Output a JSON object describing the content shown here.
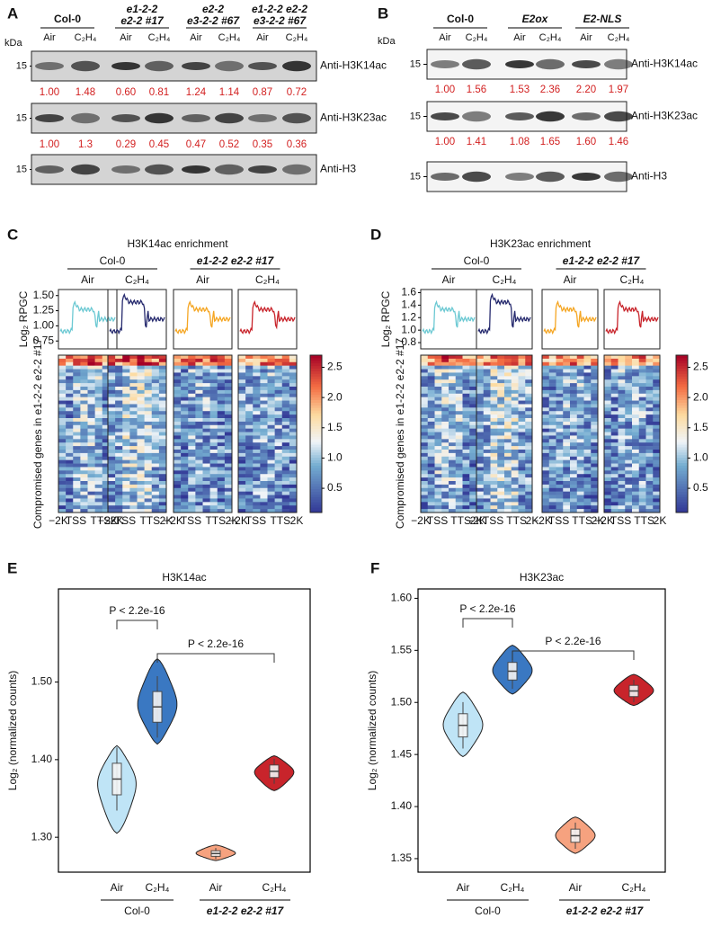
{
  "panel_a": {
    "label": "A",
    "kda": "kDa",
    "groups": [
      [
        "Col-0"
      ],
      [
        "e1-2-2",
        "e2-2 #17"
      ],
      [
        "e2-2",
        "e3-2-2 #67"
      ],
      [
        "e1-2-2 e2-2",
        "e3-2-2 #67"
      ]
    ],
    "lanes": [
      "Air",
      "C₂H₄",
      "Air",
      "C₂H₄",
      "Air",
      "C₂H₄",
      "Air",
      "C₂H₄"
    ],
    "blots": [
      {
        "marker": "15",
        "antibody": "Anti-H3K14ac",
        "values": [
          "1.00",
          "1.48",
          "0.60",
          "0.81",
          "1.24",
          "1.14",
          "0.87",
          "0.72"
        ]
      },
      {
        "marker": "15",
        "antibody": "Anti-H3K23ac",
        "values": [
          "1.00",
          "1.3",
          "0.29",
          "0.45",
          "0.47",
          "0.52",
          "0.35",
          "0.36"
        ]
      },
      {
        "marker": "15",
        "antibody": "Anti-H3"
      }
    ]
  },
  "panel_b": {
    "label": "B",
    "kda": "kDa",
    "groups": [
      "Col-0",
      "E2ox",
      "E2-NLS"
    ],
    "lanes": [
      "Air",
      "C₂H₄",
      "Air",
      "C₂H₄",
      "Air",
      "C₂H₄"
    ],
    "blots": [
      {
        "marker": "15",
        "antibody": "Anti-H3K14ac",
        "values": [
          "1.00",
          "1.56",
          "1.53",
          "2.36",
          "2.20",
          "1.97"
        ]
      },
      {
        "marker": "15",
        "antibody": "Anti-H3K23ac",
        "values": [
          "1.00",
          "1.41",
          "1.08",
          "1.65",
          "1.60",
          "1.46"
        ]
      },
      {
        "marker": "15",
        "antibody": "Anti-H3"
      }
    ]
  },
  "panel_c": {
    "label": "C",
    "title": "H3K14ac enrichment",
    "groups": [
      "Col-0",
      "e1-2-2 e2-2 #17"
    ],
    "conditions": [
      "Air",
      "C₂H₄",
      "Air",
      "C₂H₄"
    ],
    "profile_ylabel": "Log₂ RPGC",
    "profile_ylim": [
      0.62,
      1.6
    ],
    "profile_yticks": [
      {
        "value": 0.75,
        "label": "0.75"
      },
      {
        "value": 1,
        "label": "1.00"
      },
      {
        "value": 1.25,
        "label": "1.25"
      },
      {
        "value": 1.5,
        "label": "1.50"
      }
    ],
    "heatmap_ylabel": "Compromised genes in e1-2-2 e2-2 #17",
    "xticks": [
      "−2K",
      "TSS",
      "TTS",
      "2K"
    ],
    "colorbar_lim": [
      0.1,
      2.7
    ],
    "colorbar_ticks": [
      0.5,
      {
        "value": 1,
        "label": "1.0"
      },
      1.5,
      {
        "value": 2,
        "label": "2.0"
      },
      2.5
    ]
  },
  "panel_d": {
    "label": "D",
    "title": "H3K23ac enrichment",
    "groups": [
      "Col-0",
      "e1-2-2 e2-2 #17"
    ],
    "conditions": [
      "Air",
      "C₂H₄",
      "Air",
      "C₂H₄"
    ],
    "profile_ylabel": "Log₂ RPGC",
    "profile_ylim": [
      0.7,
      1.65
    ],
    "profile_yticks": [
      0.8,
      {
        "value": 1,
        "label": "1.0"
      },
      1.2,
      1.4,
      1.6
    ],
    "heatmap_ylabel": "Compromised genes in e1-2-2 e2-2 #17",
    "xticks": [
      "−2K",
      "TSS",
      "TTS",
      "2K"
    ],
    "colorbar_lim": [
      0.1,
      2.7
    ],
    "colorbar_ticks": [
      0.5,
      {
        "value": 1,
        "label": "1.0"
      },
      1.5,
      {
        "value": 2,
        "label": "2.0"
      },
      2.5
    ]
  },
  "panel_e": {
    "label": "E",
    "title": "H3K14ac",
    "ylabel": "Log₂ (normalized counts)",
    "ylim": [
      1.255,
      1.62
    ],
    "yticks": [
      {
        "value": 1.3,
        "label": "1.30"
      },
      {
        "value": 1.4,
        "label": "1.40"
      },
      {
        "value": 1.5,
        "label": "1.50"
      }
    ],
    "categories": [
      "Air",
      "C₂H₄",
      "Air",
      "C₂H₄"
    ],
    "groups": [
      "Col-0",
      "e1-2-2 e2-2 #17"
    ],
    "violins": [
      {
        "color": "#bfe4f6",
        "min": 1.305,
        "max": 1.418,
        "median": 1.375
      },
      {
        "color": "#3a78c2",
        "min": 1.42,
        "max": 1.53,
        "median": 1.468
      },
      {
        "color": "#f6a27f",
        "min": 1.27,
        "max": 1.29,
        "median": 1.279
      },
      {
        "color": "#c8242b",
        "min": 1.36,
        "max": 1.405,
        "median": 1.385
      }
    ],
    "annotations": [
      "P < 2.2e-16",
      "P < 2.2e-16"
    ]
  },
  "panel_f": {
    "label": "F",
    "title": "H3K23ac",
    "ylabel": "Log₂ (normalized counts)",
    "ylim": [
      1.337,
      1.609
    ],
    "yticks": [
      {
        "value": 1.35,
        "label": "1.35"
      },
      {
        "value": 1.4,
        "label": "1.40"
      },
      {
        "value": 1.45,
        "label": "1.45"
      },
      {
        "value": 1.5,
        "label": "1.50"
      },
      {
        "value": 1.55,
        "label": "1.55"
      },
      {
        "value": 1.6,
        "label": "1.60"
      }
    ],
    "categories": [
      "Air",
      "C₂H₄",
      "Air",
      "C₂H₄"
    ],
    "groups": [
      "Col-0",
      "e1-2-2 e2-2 #17"
    ],
    "violins": [
      {
        "color": "#bfe4f6",
        "min": 1.448,
        "max": 1.51,
        "median": 1.478
      },
      {
        "color": "#3a78c2",
        "min": 1.508,
        "max": 1.555,
        "median": 1.53
      },
      {
        "color": "#f6a27f",
        "min": 1.355,
        "max": 1.39,
        "median": 1.372
      },
      {
        "color": "#c8242b",
        "min": 1.497,
        "max": 1.527,
        "median": 1.511
      }
    ],
    "annotations": [
      "P < 2.2e-16",
      "P < 2.2e-16"
    ]
  }
}
